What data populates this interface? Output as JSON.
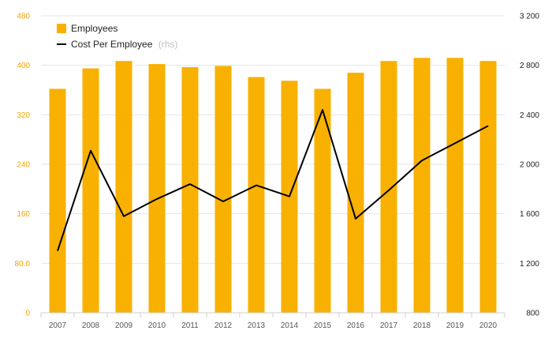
{
  "chart_data": {
    "type": "bar",
    "categories": [
      "2007",
      "2008",
      "2009",
      "2010",
      "2011",
      "2012",
      "2013",
      "2014",
      "2015",
      "2016",
      "2017",
      "2018",
      "2019",
      "2020"
    ],
    "series": [
      {
        "name": "Employees",
        "type": "bar",
        "axis": "left",
        "color": "#f8b100",
        "values": [
          362,
          395,
          407,
          402,
          397,
          399,
          381,
          375,
          362,
          388,
          407,
          412,
          412,
          407
        ]
      },
      {
        "name": "Cost Per Employee",
        "type": "line",
        "axis": "right",
        "color": "#000000",
        "values": [
          1300,
          2110,
          1580,
          1720,
          1840,
          1700,
          1830,
          1740,
          2440,
          1560,
          1790,
          2030,
          2170,
          2310
        ]
      }
    ],
    "y_left": {
      "ylim": [
        0,
        480
      ],
      "tick_labels": [
        "0",
        "80.0",
        "160",
        "240",
        "320",
        "400",
        "480"
      ],
      "tick_color": "#f0a500"
    },
    "y_right": {
      "ylim": [
        800,
        3200
      ],
      "tick_labels": [
        "800",
        "1 200",
        "1 600",
        "2 000",
        "2 400",
        "2 800",
        "3 200"
      ],
      "tick_color": "#222222"
    },
    "legend": {
      "position": "top-left",
      "entries": [
        {
          "label": "Employees",
          "suffix": ""
        },
        {
          "label": "Cost Per Employee",
          "suffix": "(rhs)"
        }
      ]
    },
    "grid": true
  }
}
